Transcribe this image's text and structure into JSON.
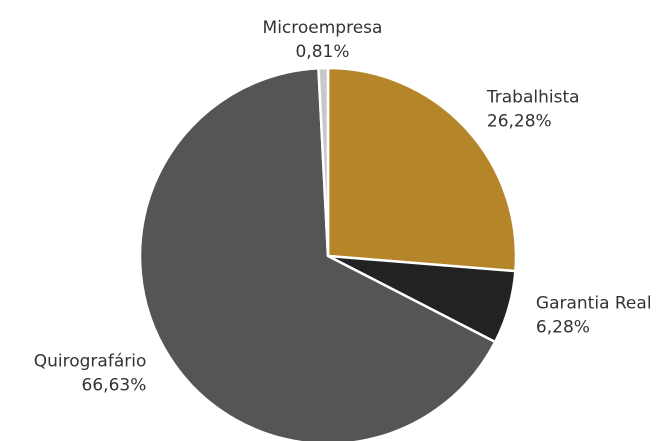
{
  "chart_data": {
    "type": "pie",
    "categories": [
      "Trabalhista",
      "Garantia Real",
      "Quirografário",
      "Microempresa"
    ],
    "values": [
      26.28,
      6.28,
      66.63,
      0.81
    ],
    "value_labels": [
      "26,28%",
      "6,28%",
      "66,63%",
      "0,81%"
    ],
    "colors": [
      "#b5852a",
      "#222222",
      "#555555",
      "#c8c8c8"
    ]
  }
}
